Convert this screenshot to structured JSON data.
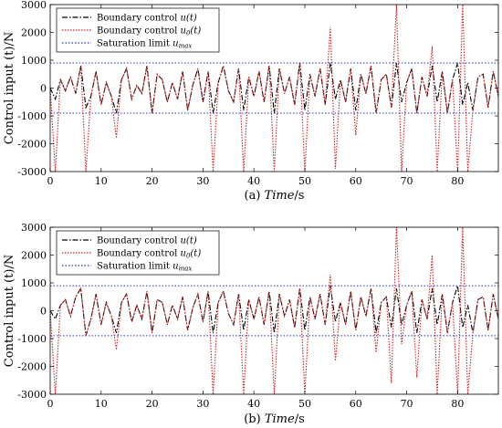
{
  "chart_data": [
    {
      "type": "line",
      "caption": {
        "prefix": "(a)",
        "label": "Time",
        "unit": "/s"
      },
      "ylabel": "Control input (t)/N",
      "xlim": [
        0,
        88
      ],
      "ylim": [
        -3000,
        3000
      ],
      "x_ticks": [
        0,
        10,
        20,
        30,
        40,
        50,
        60,
        70,
        80
      ],
      "x_tick_labels": [
        "0",
        "10",
        "20",
        "30",
        "40",
        "50",
        "60",
        "70",
        "80"
      ],
      "y_ticks": [
        3000,
        2000,
        1000,
        0,
        -1000,
        -2000,
        -3000
      ],
      "y_tick_labels": [
        "3000",
        "2000",
        "1000",
        "0",
        "-1000",
        "-2000",
        "-3000"
      ],
      "legend_position": "top-left",
      "legend": [
        {
          "label": "Boundary control ",
          "math": "u(t)"
        },
        {
          "label": "Boundary control ",
          "math": "u",
          "sub": "0",
          "suffix": "(t)"
        },
        {
          "label": "Saturation limit ",
          "math": "u",
          "sub": "max",
          "suffix": ""
        }
      ],
      "series": [
        {
          "color": "#000000",
          "x": [
            0,
            1,
            2,
            3,
            4,
            5,
            6,
            7,
            8,
            9,
            10,
            11,
            12,
            13,
            14,
            15,
            16,
            17,
            18,
            19,
            20,
            21,
            22,
            23,
            24,
            25,
            26,
            27,
            28,
            29,
            30,
            31,
            32,
            33,
            34,
            35,
            36,
            37,
            38,
            39,
            40,
            41,
            42,
            43,
            44,
            45,
            46,
            47,
            48,
            49,
            50,
            51,
            52,
            53,
            54,
            55,
            56,
            57,
            58,
            59,
            60,
            61,
            62,
            63,
            64,
            65,
            66,
            67,
            68,
            69,
            70,
            71,
            72,
            73,
            74,
            75,
            76,
            77,
            78,
            79,
            80,
            81,
            82,
            83,
            84,
            85,
            86,
            87,
            88
          ],
          "y": [
            0,
            -400,
            300,
            -100,
            400,
            -200,
            800,
            -700,
            -300,
            600,
            -600,
            200,
            -300,
            -900,
            300,
            700,
            -400,
            100,
            -200,
            800,
            -900,
            500,
            300,
            -500,
            200,
            -400,
            600,
            -800,
            100,
            700,
            -500,
            600,
            -900,
            200,
            800,
            -100,
            -500,
            700,
            -800,
            400,
            -300,
            600,
            -500,
            800,
            -900,
            700,
            -200,
            400,
            -600,
            900,
            -800,
            500,
            -300,
            700,
            -600,
            900,
            -400,
            300,
            -500,
            700,
            -800,
            500,
            -200,
            800,
            -900,
            300,
            500,
            -700,
            900,
            -500,
            200,
            700,
            -900,
            400,
            -300,
            800,
            -500,
            600,
            -900,
            300,
            900,
            -600,
            200,
            -800,
            400,
            500,
            -700,
            600,
            -300
          ]
        },
        {
          "color": "#cc2222",
          "x": [
            0,
            1,
            2,
            3,
            4,
            5,
            6,
            7,
            8,
            9,
            10,
            11,
            12,
            13,
            14,
            15,
            16,
            17,
            18,
            19,
            20,
            21,
            22,
            23,
            24,
            25,
            26,
            27,
            28,
            29,
            30,
            31,
            32,
            33,
            34,
            35,
            36,
            37,
            38,
            39,
            40,
            41,
            42,
            43,
            44,
            45,
            46,
            47,
            48,
            49,
            50,
            51,
            52,
            53,
            54,
            55,
            56,
            57,
            58,
            59,
            60,
            61,
            62,
            63,
            64,
            65,
            66,
            67,
            68,
            69,
            70,
            71,
            72,
            73,
            74,
            75,
            76,
            77,
            78,
            79,
            80,
            81,
            82,
            83,
            84,
            85,
            86,
            87,
            88
          ],
          "y": [
            0,
            -3000,
            300,
            -100,
            400,
            -200,
            800,
            -3000,
            -300,
            600,
            -600,
            200,
            -300,
            -1800,
            300,
            700,
            -400,
            100,
            -200,
            800,
            -900,
            500,
            300,
            -500,
            200,
            -400,
            600,
            -800,
            100,
            700,
            -500,
            600,
            -3000,
            200,
            800,
            -100,
            -500,
            700,
            -3000,
            400,
            -300,
            600,
            -500,
            800,
            -3000,
            700,
            -200,
            400,
            -600,
            900,
            -3000,
            500,
            -300,
            700,
            -600,
            2200,
            -2900,
            300,
            -500,
            700,
            -1700,
            500,
            -200,
            800,
            -900,
            300,
            500,
            -700,
            3000,
            -3000,
            200,
            700,
            -900,
            400,
            -300,
            1500,
            -3000,
            600,
            -900,
            300,
            -3000,
            3000,
            -3000,
            -800,
            400,
            500,
            -700,
            600,
            -300
          ]
        },
        {
          "color": "#2233cc",
          "x": [
            0,
            88
          ],
          "y": [
            900,
            900
          ]
        },
        {
          "color": "#2233cc",
          "x": [
            0,
            88
          ],
          "y": [
            -900,
            -900
          ]
        }
      ]
    },
    {
      "type": "line",
      "caption": {
        "prefix": "(b)",
        "label": "Time",
        "unit": "/s"
      },
      "ylabel": "Control input (t)/N",
      "xlim": [
        0,
        88
      ],
      "ylim": [
        -3000,
        3000
      ],
      "x_ticks": [
        0,
        10,
        20,
        30,
        40,
        50,
        60,
        70,
        80
      ],
      "x_tick_labels": [
        "0",
        "10",
        "20",
        "30",
        "40",
        "50",
        "60",
        "70",
        "80"
      ],
      "y_ticks": [
        3000,
        2000,
        1000,
        0,
        -1000,
        -2000,
        -3000
      ],
      "y_tick_labels": [
        "3000",
        "2000",
        "1000",
        "0",
        "-1000",
        "-2000",
        "-3000"
      ],
      "legend_position": "top-left",
      "legend": [
        {
          "label": "Boundary control ",
          "math": "u(t)"
        },
        {
          "label": "Boundary control ",
          "math": "u",
          "sub": "0",
          "suffix": "(t)"
        },
        {
          "label": "Saturation limit ",
          "math": "u",
          "sub": "max",
          "suffix": ""
        }
      ],
      "series": [
        {
          "color": "#000000",
          "x": [
            0,
            1,
            2,
            3,
            4,
            5,
            6,
            7,
            8,
            9,
            10,
            11,
            12,
            13,
            14,
            15,
            16,
            17,
            18,
            19,
            20,
            21,
            22,
            23,
            24,
            25,
            26,
            27,
            28,
            29,
            30,
            31,
            32,
            33,
            34,
            35,
            36,
            37,
            38,
            39,
            40,
            41,
            42,
            43,
            44,
            45,
            46,
            47,
            48,
            49,
            50,
            51,
            52,
            53,
            54,
            55,
            56,
            57,
            58,
            59,
            60,
            61,
            62,
            63,
            64,
            65,
            66,
            67,
            68,
            69,
            70,
            71,
            72,
            73,
            74,
            75,
            76,
            77,
            78,
            79,
            80,
            81,
            82,
            83,
            84,
            85,
            86,
            87,
            88
          ],
          "y": [
            0,
            -300,
            200,
            400,
            -200,
            500,
            800,
            -900,
            -300,
            600,
            -500,
            300,
            -200,
            -800,
            300,
            600,
            -400,
            200,
            -300,
            700,
            -800,
            400,
            300,
            -500,
            200,
            -300,
            500,
            -700,
            100,
            600,
            -400,
            700,
            -800,
            300,
            700,
            -100,
            -500,
            600,
            -700,
            400,
            -300,
            500,
            -500,
            700,
            -800,
            600,
            -200,
            400,
            -600,
            800,
            -700,
            500,
            -300,
            600,
            -500,
            900,
            -400,
            300,
            -500,
            700,
            -700,
            500,
            -200,
            800,
            -800,
            300,
            500,
            -600,
            800,
            -500,
            200,
            700,
            -800,
            400,
            -300,
            800,
            -500,
            600,
            -800,
            300,
            900,
            -600,
            200,
            -800,
            400,
            500,
            -700,
            600,
            -300
          ]
        },
        {
          "color": "#cc2222",
          "x": [
            0,
            1,
            2,
            3,
            4,
            5,
            6,
            7,
            8,
            9,
            10,
            11,
            12,
            13,
            14,
            15,
            16,
            17,
            18,
            19,
            20,
            21,
            22,
            23,
            24,
            25,
            26,
            27,
            28,
            29,
            30,
            31,
            32,
            33,
            34,
            35,
            36,
            37,
            38,
            39,
            40,
            41,
            42,
            43,
            44,
            45,
            46,
            47,
            48,
            49,
            50,
            51,
            52,
            53,
            54,
            55,
            56,
            57,
            58,
            59,
            60,
            61,
            62,
            63,
            64,
            65,
            66,
            67,
            68,
            69,
            70,
            71,
            72,
            73,
            74,
            75,
            76,
            77,
            78,
            79,
            80,
            81,
            82,
            83,
            84,
            85,
            86,
            87,
            88
          ],
          "y": [
            0,
            -3000,
            200,
            400,
            -200,
            500,
            800,
            -900,
            -300,
            600,
            -500,
            300,
            -200,
            -1400,
            300,
            600,
            -400,
            200,
            -300,
            700,
            -800,
            400,
            300,
            -500,
            200,
            -300,
            500,
            -700,
            100,
            600,
            -400,
            700,
            -3000,
            300,
            700,
            -100,
            -500,
            600,
            -3000,
            400,
            -300,
            500,
            -500,
            700,
            -3000,
            600,
            -200,
            400,
            -600,
            800,
            -3000,
            500,
            -300,
            600,
            -500,
            1300,
            -1800,
            300,
            -500,
            700,
            -700,
            500,
            -200,
            800,
            -1500,
            300,
            500,
            -2600,
            3000,
            -1200,
            200,
            700,
            -2400,
            400,
            -300,
            2000,
            -3000,
            600,
            -800,
            300,
            -3000,
            3000,
            -3000,
            -800,
            400,
            500,
            -700,
            600,
            -300
          ]
        },
        {
          "color": "#2233cc",
          "x": [
            0,
            88
          ],
          "y": [
            900,
            900
          ]
        },
        {
          "color": "#2233cc",
          "x": [
            0,
            88
          ],
          "y": [
            -900,
            -900
          ]
        }
      ]
    }
  ]
}
